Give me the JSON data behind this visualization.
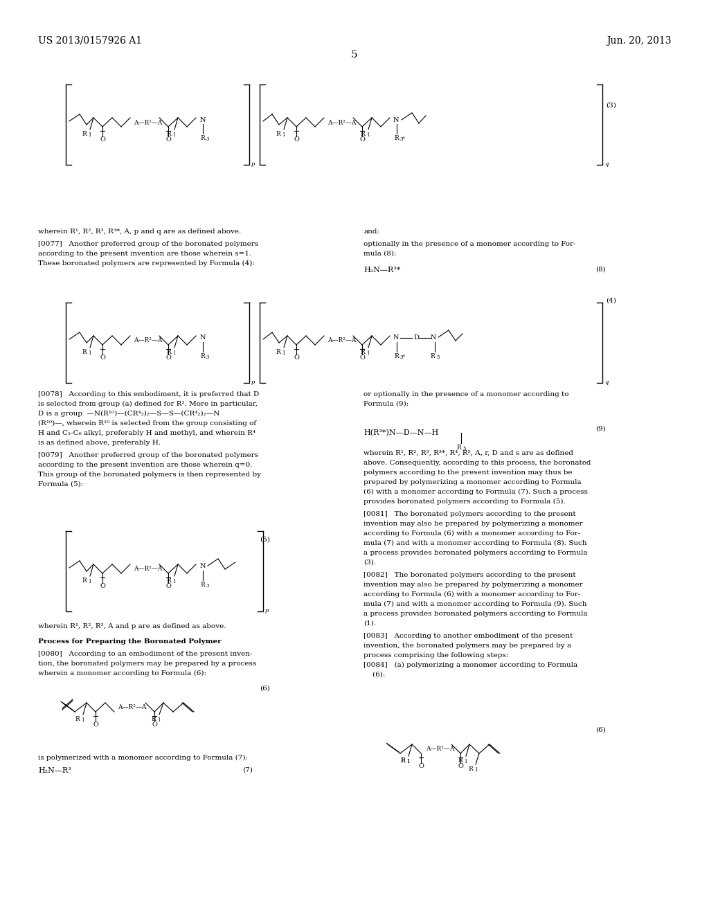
{
  "page_header_left": "US 2013/0157926 A1",
  "page_header_right": "Jun. 20, 2013",
  "page_number": "5",
  "background_color": "#ffffff",
  "text_color": "#000000",
  "font_size_header": 10,
  "font_size_body": 7.5,
  "font_size_small": 6.5,
  "font_size_formula_label": 8
}
